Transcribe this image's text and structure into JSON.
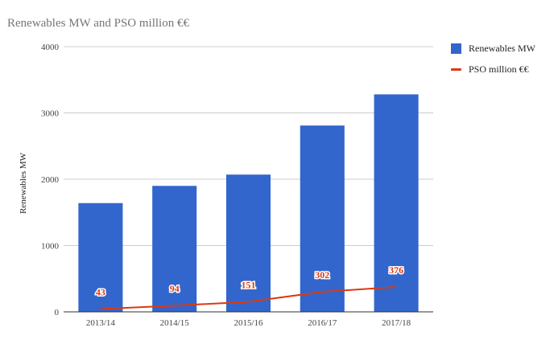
{
  "chart_data": {
    "type": "bar",
    "title": "Renewables MW and PSO million €€",
    "xlabel": "",
    "ylabel": "Renewables MW",
    "categories": [
      "2013/14",
      "2014/15",
      "2015/16",
      "2016/17",
      "2017/18"
    ],
    "ylim": [
      0,
      4000
    ],
    "yticks": [
      "0",
      "1000",
      "2000",
      "3000",
      "4000"
    ],
    "grid": true,
    "legend_position": "right",
    "series": [
      {
        "name": "Renewables MW",
        "type": "bar",
        "color": "#3366cc",
        "values": [
          1640,
          1900,
          2070,
          2810,
          3280
        ]
      },
      {
        "name": "PSO million €€",
        "type": "line",
        "color": "#dc3912",
        "values": [
          43,
          94,
          151,
          302,
          376
        ],
        "labels": [
          "43",
          "94",
          "151",
          "302",
          "376"
        ]
      }
    ]
  }
}
